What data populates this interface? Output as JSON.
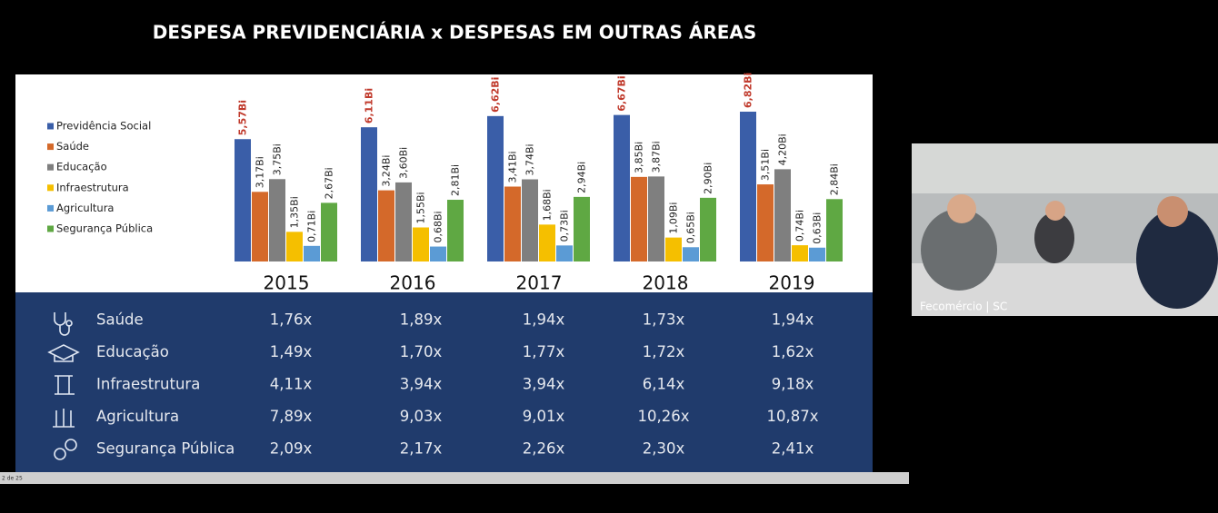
{
  "chart_data": {
    "type": "bar",
    "title": "DESPESA PREVIDENCIÁRIA x DESPESAS EM OUTRAS ÁREAS",
    "categories": [
      "2015",
      "2016",
      "2017",
      "2018",
      "2019"
    ],
    "series": [
      {
        "name": "Previdência Social",
        "color": "#3a5ea8",
        "label_color": "#c0392b",
        "values": [
          5.57,
          6.11,
          6.62,
          6.67,
          6.82
        ],
        "value_labels": [
          "5,57Bi",
          "6,11Bi",
          "6,62Bi",
          "6,67Bi",
          "6,82Bi"
        ]
      },
      {
        "name": "Saúde",
        "color": "#d4692a",
        "label_color": "#222222",
        "values": [
          3.17,
          3.24,
          3.41,
          3.85,
          3.51
        ],
        "value_labels": [
          "3,17Bi",
          "3,24Bi",
          "3,41Bi",
          "3,85Bi",
          "3,51Bi"
        ]
      },
      {
        "name": "Educação",
        "color": "#7f7f7f",
        "label_color": "#222222",
        "values": [
          3.75,
          3.6,
          3.74,
          3.87,
          4.2
        ],
        "value_labels": [
          "3,75Bi",
          "3,60Bi",
          "3,74Bi",
          "3,87Bi",
          "4,20Bi"
        ]
      },
      {
        "name": "Infraestrutura",
        "color": "#f5bf00",
        "label_color": "#222222",
        "values": [
          1.35,
          1.55,
          1.68,
          1.09,
          0.74
        ],
        "value_labels": [
          "1,35Bi",
          "1,55Bi",
          "1,68Bi",
          "1,09Bi",
          "0,74Bi"
        ]
      },
      {
        "name": "Agricultura",
        "color": "#5b9bd5",
        "label_color": "#222222",
        "values": [
          0.71,
          0.68,
          0.73,
          0.65,
          0.63
        ],
        "value_labels": [
          "0,71Bi",
          "0,68Bi",
          "0,73Bi",
          "0,65Bi",
          "0,63Bi"
        ]
      },
      {
        "name": "Segurança Pública",
        "color": "#5fa843",
        "label_color": "#222222",
        "values": [
          2.67,
          2.81,
          2.94,
          2.9,
          2.84
        ],
        "value_labels": [
          "2,67Bi",
          "2,81Bi",
          "2,94Bi",
          "2,90Bi",
          "2,84Bi"
        ]
      }
    ]
  },
  "table": {
    "rows": [
      [
        "Saúde",
        "1,76x",
        "1,89x",
        "1,94x",
        "1,73x",
        "1,94x"
      ],
      [
        "Educação",
        "1,49x",
        "1,70x",
        "1,77x",
        "1,72x",
        "1,62x"
      ],
      [
        "Infraestrutura",
        "4,11x",
        "3,94x",
        "3,94x",
        "6,14x",
        "9,18x"
      ],
      [
        "Agricultura",
        "7,89x",
        "9,03x",
        "9,01x",
        "10,26x",
        "10,87x"
      ],
      [
        "Segurança Pública",
        "2,09x",
        "2,17x",
        "2,26x",
        "2,30x",
        "2,41x"
      ]
    ]
  },
  "status_bar": {
    "slide": "2 de 25"
  },
  "video": {
    "caption": "Fecomércio | SC"
  }
}
